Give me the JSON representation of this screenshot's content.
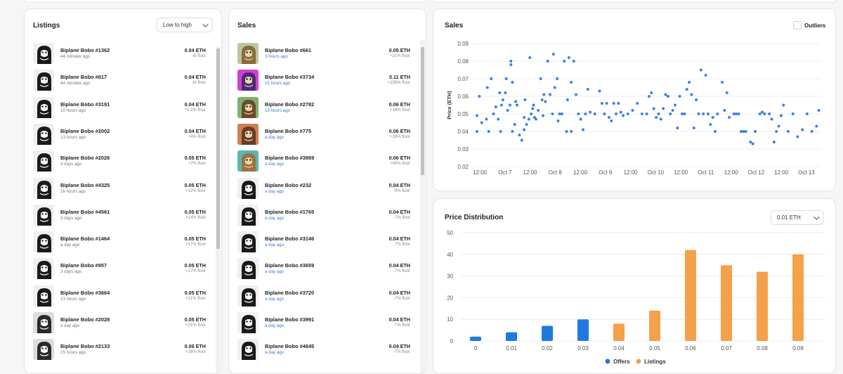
{
  "listings": {
    "title": "Listings",
    "sort_label": "Low to high",
    "items": [
      {
        "name": "Biplane Bobo #1362",
        "time": "44 minutes ago",
        "price": "0.04 ETH",
        "floor": "At floor"
      },
      {
        "name": "Biplane Bobo #617",
        "time": "44 minutes ago",
        "price": "0.04 ETH",
        "floor": "At floor"
      },
      {
        "name": "Biplane Bobo #3191",
        "time": "10 hours ago",
        "price": "0.04 ETH",
        "floor": "+0.2% floor"
      },
      {
        "name": "Biplane Bobo #2002",
        "time": "13 hours ago",
        "price": "0.04 ETH",
        "floor": "+4% floor"
      },
      {
        "name": "Biplane Bobo #2026",
        "time": "3 days ago",
        "price": "0.05 ETH",
        "floor": "+7% floor"
      },
      {
        "name": "Biplane Bobo #4325",
        "time": "16 hours ago",
        "price": "0.05 ETH",
        "floor": "+12% floor"
      },
      {
        "name": "Biplane Bobo #4561",
        "time": "3 days ago",
        "price": "0.05 ETH",
        "floor": "+14% floor"
      },
      {
        "name": "Biplane Bobo #1464",
        "time": "a day ago",
        "price": "0.05 ETH",
        "floor": "+17% floor"
      },
      {
        "name": "Biplane Bobo #957",
        "time": "3 days ago",
        "price": "0.05 ETH",
        "floor": "+17% floor"
      },
      {
        "name": "Biplane Bobo #3664",
        "time": "13 hours ago",
        "price": "0.05 ETH",
        "floor": "+21% floor"
      },
      {
        "name": "Biplane Bobo #2028",
        "time": "a day ago",
        "price": "0.05 ETH",
        "floor": "+21% floor"
      },
      {
        "name": "Biplane Bobo #2133",
        "time": "15 hours ago",
        "price": "0.06 ETH",
        "floor": "+28% floor"
      }
    ]
  },
  "sales": {
    "title": "Sales",
    "items": [
      {
        "name": "Biplane Bobo #661",
        "time": "3 hours ago",
        "price": "0.05 ETH",
        "floor": "+21% floor"
      },
      {
        "name": "Biplane Bobo #3734",
        "time": "15 hours ago",
        "price": "0.11 ETH",
        "floor": "+156% floor"
      },
      {
        "name": "Biplane Bobo #2782",
        "time": "15 hours ago",
        "price": "0.06 ETH",
        "floor": "+38% floor"
      },
      {
        "name": "Biplane Bobo #775",
        "time": "a day ago",
        "price": "0.06 ETH",
        "floor": "+28% floor"
      },
      {
        "name": "Biplane Bobo #3869",
        "time": "a day ago",
        "price": "0.06 ETH",
        "floor": "+40% floor"
      },
      {
        "name": "Biplane Bobo #232",
        "time": "a day ago",
        "price": "0.04 ETH",
        "floor": "-9% floor"
      },
      {
        "name": "Biplane Bobo #1765",
        "time": "a day ago",
        "price": "0.04 ETH",
        "floor": "-7% floor"
      },
      {
        "name": "Biplane Bobo #3146",
        "time": "a day ago",
        "price": "0.04 ETH",
        "floor": "-7% floor"
      },
      {
        "name": "Biplane Bobo #3659",
        "time": "a day ago",
        "price": "0.04 ETH",
        "floor": "-7% floor"
      },
      {
        "name": "Biplane Bobo #3720",
        "time": "a day ago",
        "price": "0.04 ETH",
        "floor": "-7% floor"
      },
      {
        "name": "Biplane Bobo #3991",
        "time": "a day ago",
        "price": "0.04 ETH",
        "floor": "-7% floor"
      },
      {
        "name": "Biplane Bobo #4645",
        "time": "a day ago",
        "price": "0.04 ETH",
        "floor": "-7% floor"
      }
    ]
  },
  "sales_chart_panel": {
    "title": "Sales",
    "outliers_label": "Outliers"
  },
  "distribution_panel": {
    "title": "Price Distribution",
    "bucket_label": "0.01 ETH"
  },
  "colors": {
    "sale_dot": "#3b82e0",
    "offers": "#1f7ae0",
    "listings": "#f5a04a",
    "accent_link": "#3a7bd5"
  },
  "chart_data": [
    {
      "type": "scatter",
      "title": "Sales",
      "ylabel": "Price (ETH)",
      "ylim": [
        0.02,
        0.09
      ],
      "yticks": [
        "0.09",
        "0.08",
        "0.07",
        "0.06",
        "0.05",
        "0.04",
        "0.03",
        "0.02"
      ],
      "xticks": [
        "12:00",
        "Oct 7",
        "12:00",
        "Oct 8",
        "12:00",
        "Oct 9",
        "12:00",
        "Oct 10",
        "12:00",
        "Oct 11",
        "12:00",
        "Oct 12",
        "12:00",
        "Oct 13"
      ],
      "x_range": [
        0,
        7.3
      ],
      "grid": true,
      "points": [
        [
          0.0,
          0.049
        ],
        [
          0.0,
          0.04
        ],
        [
          0.05,
          0.06
        ],
        [
          0.1,
          0.045
        ],
        [
          0.2,
          0.047
        ],
        [
          0.22,
          0.065
        ],
        [
          0.25,
          0.04
        ],
        [
          0.3,
          0.07
        ],
        [
          0.35,
          0.05
        ],
        [
          0.4,
          0.054
        ],
        [
          0.45,
          0.047
        ],
        [
          0.48,
          0.062
        ],
        [
          0.5,
          0.04
        ],
        [
          0.52,
          0.055
        ],
        [
          0.55,
          0.058
        ],
        [
          0.6,
          0.062
        ],
        [
          0.62,
          0.07
        ],
        [
          0.65,
          0.052
        ],
        [
          0.7,
          0.055
        ],
        [
          0.72,
          0.08
        ],
        [
          0.72,
          0.078
        ],
        [
          0.75,
          0.068
        ],
        [
          0.75,
          0.04
        ],
        [
          0.8,
          0.044
        ],
        [
          0.82,
          0.057
        ],
        [
          0.85,
          0.055
        ],
        [
          0.9,
          0.038
        ],
        [
          0.95,
          0.035
        ],
        [
          1.0,
          0.048
        ],
        [
          1.0,
          0.041
        ],
        [
          1.02,
          0.058
        ],
        [
          1.05,
          0.044
        ],
        [
          1.1,
          0.047
        ],
        [
          1.12,
          0.082
        ],
        [
          1.15,
          0.05
        ],
        [
          1.18,
          0.053
        ],
        [
          1.2,
          0.055
        ],
        [
          1.22,
          0.048
        ],
        [
          1.25,
          0.047
        ],
        [
          1.3,
          0.052
        ],
        [
          1.35,
          0.07
        ],
        [
          1.38,
          0.058
        ],
        [
          1.4,
          0.049
        ],
        [
          1.42,
          0.061
        ],
        [
          1.45,
          0.057
        ],
        [
          1.5,
          0.08
        ],
        [
          1.55,
          0.061
        ],
        [
          1.6,
          0.05
        ],
        [
          1.62,
          0.084
        ],
        [
          1.65,
          0.065
        ],
        [
          1.7,
          0.07
        ],
        [
          1.72,
          0.046
        ],
        [
          1.75,
          0.05
        ],
        [
          1.8,
          0.05
        ],
        [
          1.85,
          0.08
        ],
        [
          1.9,
          0.04
        ],
        [
          1.92,
          0.058
        ],
        [
          1.95,
          0.082
        ],
        [
          2.0,
          0.068
        ],
        [
          2.0,
          0.04
        ],
        [
          2.05,
          0.08
        ],
        [
          2.1,
          0.061
        ],
        [
          2.15,
          0.05
        ],
        [
          2.2,
          0.047
        ],
        [
          2.25,
          0.041
        ],
        [
          2.3,
          0.05
        ],
        [
          2.35,
          0.064
        ],
        [
          2.4,
          0.051
        ],
        [
          2.5,
          0.05
        ],
        [
          2.6,
          0.063
        ],
        [
          2.65,
          0.056
        ],
        [
          2.7,
          0.05
        ],
        [
          2.75,
          0.056
        ],
        [
          2.8,
          0.048
        ],
        [
          2.85,
          0.046
        ],
        [
          2.9,
          0.056
        ],
        [
          2.95,
          0.05
        ],
        [
          3.0,
          0.056
        ],
        [
          3.05,
          0.051
        ],
        [
          3.1,
          0.049
        ],
        [
          3.2,
          0.05
        ],
        [
          3.3,
          0.052
        ],
        [
          3.4,
          0.056
        ],
        [
          3.5,
          0.05
        ],
        [
          3.6,
          0.05
        ],
        [
          3.65,
          0.06
        ],
        [
          3.7,
          0.062
        ],
        [
          3.75,
          0.053
        ],
        [
          3.8,
          0.048
        ],
        [
          3.85,
          0.05
        ],
        [
          3.9,
          0.047
        ],
        [
          3.95,
          0.053
        ],
        [
          4.0,
          0.061
        ],
        [
          4.05,
          0.06
        ],
        [
          4.1,
          0.05
        ],
        [
          4.15,
          0.052
        ],
        [
          4.2,
          0.055
        ],
        [
          4.25,
          0.042
        ],
        [
          4.3,
          0.06
        ],
        [
          4.35,
          0.05
        ],
        [
          4.4,
          0.05
        ],
        [
          4.45,
          0.064
        ],
        [
          4.5,
          0.068
        ],
        [
          4.55,
          0.061
        ],
        [
          4.6,
          0.042
        ],
        [
          4.65,
          0.058
        ],
        [
          4.7,
          0.05
        ],
        [
          4.75,
          0.075
        ],
        [
          4.8,
          0.05
        ],
        [
          4.85,
          0.072
        ],
        [
          4.9,
          0.05
        ],
        [
          4.95,
          0.044
        ],
        [
          5.0,
          0.048
        ],
        [
          5.05,
          0.04
        ],
        [
          5.1,
          0.05
        ],
        [
          5.2,
          0.068
        ],
        [
          5.25,
          0.052
        ],
        [
          5.3,
          0.062
        ],
        [
          5.35,
          0.048
        ],
        [
          5.45,
          0.05
        ],
        [
          5.5,
          0.05
        ],
        [
          5.55,
          0.05
        ],
        [
          5.6,
          0.04
        ],
        [
          5.65,
          0.04
        ],
        [
          5.7,
          0.04
        ],
        [
          5.8,
          0.034
        ],
        [
          5.85,
          0.033
        ],
        [
          5.9,
          0.04
        ],
        [
          6.0,
          0.05
        ],
        [
          6.05,
          0.051
        ],
        [
          6.1,
          0.05
        ],
        [
          6.2,
          0.05
        ],
        [
          6.25,
          0.047
        ],
        [
          6.3,
          0.034
        ],
        [
          6.35,
          0.04
        ],
        [
          6.4,
          0.043
        ],
        [
          6.45,
          0.049
        ],
        [
          6.5,
          0.055
        ],
        [
          6.6,
          0.04
        ],
        [
          6.7,
          0.05
        ],
        [
          6.8,
          0.037
        ],
        [
          6.9,
          0.041
        ],
        [
          7.0,
          0.05
        ],
        [
          7.1,
          0.04
        ],
        [
          7.2,
          0.043
        ],
        [
          7.25,
          0.052
        ]
      ]
    },
    {
      "type": "bar",
      "title": "Price Distribution",
      "categories": [
        "0",
        "0.01",
        "0.02",
        "0.03",
        "0.04",
        "0.05",
        "0.06",
        "0.07",
        "0.08",
        "0.09"
      ],
      "ylim": [
        0,
        50
      ],
      "yticks": [
        "50",
        "40",
        "30",
        "20",
        "10",
        "0"
      ],
      "grid": true,
      "legend": "bottom",
      "series": [
        {
          "name": "Offers",
          "values": [
            2,
            4,
            7,
            10,
            0,
            0,
            0,
            0,
            0,
            0
          ]
        },
        {
          "name": "Listings",
          "values": [
            0,
            0,
            0,
            0,
            8,
            14,
            42,
            35,
            32,
            40
          ]
        }
      ]
    }
  ]
}
